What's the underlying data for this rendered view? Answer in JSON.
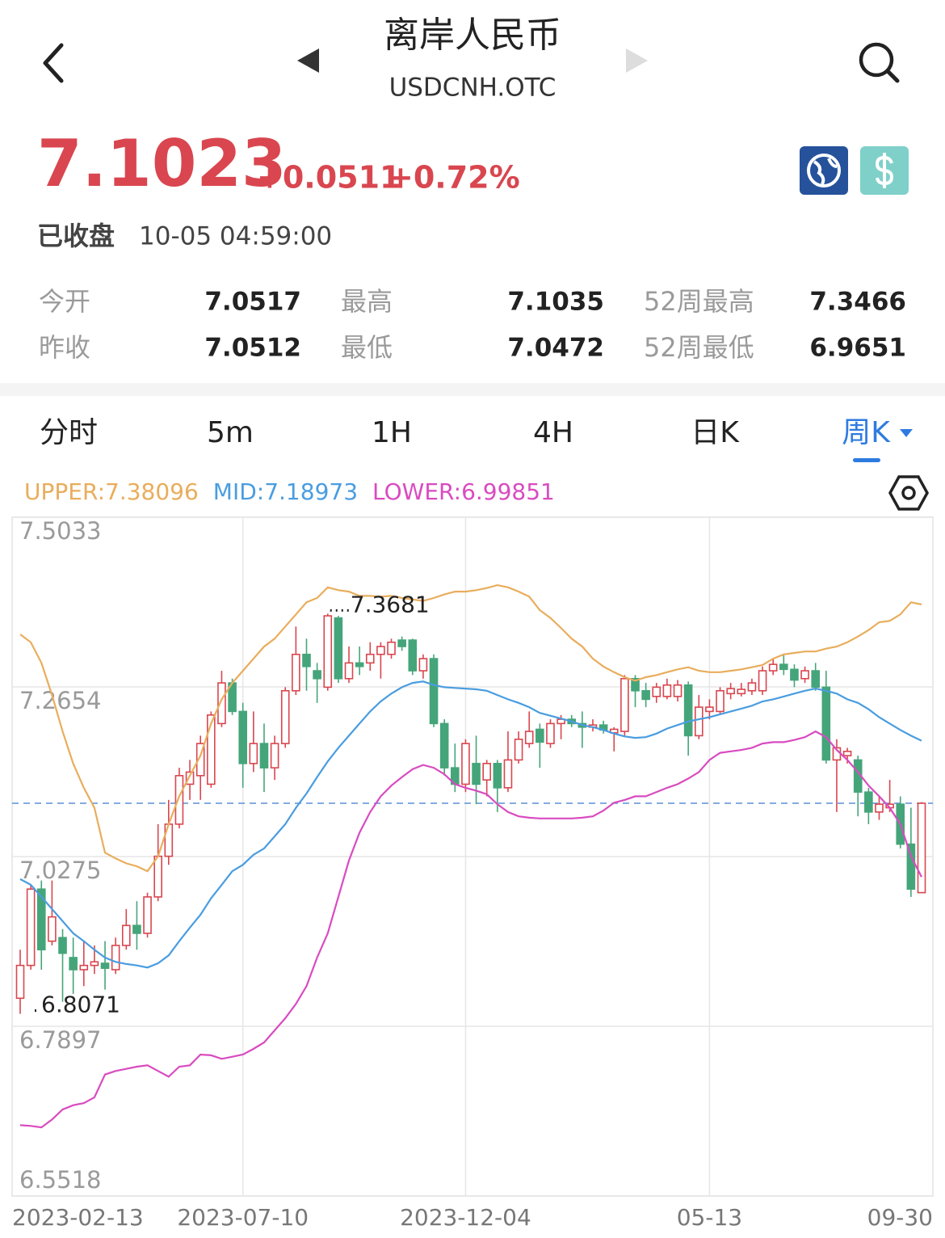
{
  "header": {
    "title": "离岸人民币",
    "code": "USDCNH.OTC",
    "price": "7.1023",
    "change": "+0.0511",
    "change_pct": "+0.72%",
    "status": "已收盘",
    "time": "10-05 04:59:00"
  },
  "stats": {
    "rows": [
      [
        "今开",
        "7.0517",
        "最高",
        "7.1035",
        "52周最高",
        "7.3466"
      ],
      [
        "昨收",
        "7.0512",
        "最低",
        "7.0472",
        "52周最低",
        "6.9651"
      ]
    ]
  },
  "tabs": {
    "items": [
      "分时",
      "5m",
      "1H",
      "4H",
      "日K",
      "周K"
    ],
    "active": "周K"
  },
  "chart_data": {
    "type": "candlestick",
    "categories": [
      "2023-02-13",
      null,
      null,
      null,
      null,
      null,
      null,
      null,
      null,
      null,
      null,
      null,
      null,
      null,
      null,
      null,
      null,
      null,
      null,
      null,
      null,
      "2023-07-10",
      null,
      null,
      null,
      null,
      null,
      null,
      null,
      null,
      null,
      null,
      null,
      null,
      null,
      null,
      null,
      null,
      null,
      null,
      null,
      null,
      "2023-12-04",
      null,
      null,
      null,
      null,
      null,
      null,
      null,
      null,
      null,
      null,
      null,
      null,
      null,
      null,
      null,
      null,
      null,
      null,
      null,
      null,
      null,
      null,
      "05-13",
      null,
      null,
      null,
      null,
      null,
      null,
      null,
      null,
      null,
      null,
      null,
      null,
      null,
      null,
      null,
      null,
      null,
      null,
      null,
      "09-30"
    ],
    "open": [
      6.829,
      6.875,
      6.982,
      6.909,
      6.914,
      6.886,
      6.869,
      6.875,
      6.878,
      6.869,
      6.903,
      6.931,
      6.92,
      6.971,
      7.028,
      7.073,
      7.129,
      7.141,
      7.129,
      7.214,
      7.271,
      7.231,
      7.158,
      7.186,
      7.152,
      7.186,
      7.26,
      7.311,
      7.288,
      7.265,
      7.362,
      7.277,
      7.299,
      7.299,
      7.311,
      7.311,
      7.331,
      7.331,
      7.288,
      7.305,
      7.214,
      7.152,
      7.129,
      7.158,
      7.135,
      7.158,
      7.124,
      7.163,
      7.186,
      7.206,
      7.186,
      7.214,
      7.22,
      7.214,
      7.209,
      7.212,
      7.201,
      7.203,
      7.277,
      7.26,
      7.252,
      7.252,
      7.252,
      7.268,
      7.197,
      7.231,
      7.231,
      7.256,
      7.256,
      7.26,
      7.26,
      7.288,
      7.297,
      7.29,
      7.277,
      7.288,
      7.265,
      7.163,
      7.169,
      7.163,
      7.118,
      7.09,
      7.096,
      7.101,
      7.045,
      6.977
    ],
    "high": [
      6.897,
      6.988,
      6.994,
      6.994,
      6.926,
      6.914,
      6.909,
      6.903,
      6.909,
      6.914,
      6.954,
      6.965,
      6.977,
      7.073,
      7.107,
      7.152,
      7.163,
      7.197,
      7.231,
      7.288,
      7.277,
      7.243,
      7.231,
      7.214,
      7.197,
      7.265,
      7.35,
      7.333,
      7.299,
      7.3681,
      7.365,
      7.322,
      7.322,
      7.328,
      7.328,
      7.333,
      7.336,
      7.333,
      7.311,
      7.311,
      7.22,
      7.186,
      7.192,
      7.197,
      7.163,
      7.163,
      7.203,
      7.203,
      7.231,
      7.214,
      7.22,
      7.226,
      7.226,
      7.231,
      7.22,
      7.218,
      7.209,
      7.282,
      7.282,
      7.271,
      7.271,
      7.277,
      7.275,
      7.273,
      7.254,
      7.248,
      7.265,
      7.271,
      7.271,
      7.277,
      7.294,
      7.305,
      7.311,
      7.297,
      7.294,
      7.299,
      7.288,
      7.192,
      7.18,
      7.169,
      7.124,
      7.112,
      7.135,
      7.112,
      7.096,
      7.104
    ],
    "low": [
      6.8071,
      6.869,
      6.869,
      6.903,
      6.824,
      6.835,
      6.846,
      6.863,
      6.841,
      6.863,
      6.897,
      6.897,
      6.914,
      6.965,
      7.016,
      7.067,
      7.107,
      7.107,
      7.124,
      7.209,
      7.226,
      7.124,
      7.146,
      7.118,
      7.135,
      7.18,
      7.254,
      7.26,
      7.243,
      7.26,
      7.271,
      7.271,
      7.282,
      7.288,
      7.277,
      7.305,
      7.316,
      7.282,
      7.277,
      7.209,
      7.141,
      7.118,
      7.118,
      7.101,
      7.112,
      7.09,
      7.118,
      7.158,
      7.18,
      7.152,
      7.18,
      7.192,
      7.209,
      7.18,
      7.203,
      7.2,
      7.175,
      7.197,
      7.237,
      7.237,
      7.243,
      7.248,
      7.245,
      7.169,
      7.192,
      7.22,
      7.226,
      7.248,
      7.252,
      7.254,
      7.254,
      7.282,
      7.282,
      7.265,
      7.271,
      7.26,
      7.158,
      7.09,
      7.158,
      7.084,
      7.073,
      7.079,
      7.09,
      7.039,
      6.971,
      6.977
    ],
    "close": [
      6.875,
      6.982,
      6.897,
      6.943,
      6.892,
      6.869,
      6.875,
      6.88,
      6.871,
      6.903,
      6.931,
      6.92,
      6.971,
      7.028,
      7.073,
      7.141,
      7.146,
      7.186,
      7.226,
      7.271,
      7.231,
      7.158,
      7.186,
      7.152,
      7.186,
      7.26,
      7.311,
      7.294,
      7.277,
      7.365,
      7.277,
      7.299,
      7.294,
      7.311,
      7.322,
      7.328,
      7.322,
      7.288,
      7.305,
      7.214,
      7.152,
      7.129,
      7.186,
      7.129,
      7.158,
      7.124,
      7.163,
      7.192,
      7.203,
      7.188,
      7.214,
      7.22,
      7.214,
      7.209,
      7.212,
      7.205,
      7.206,
      7.277,
      7.26,
      7.248,
      7.265,
      7.268,
      7.268,
      7.197,
      7.237,
      7.237,
      7.26,
      7.263,
      7.262,
      7.271,
      7.288,
      7.297,
      7.29,
      7.275,
      7.288,
      7.265,
      7.163,
      7.18,
      7.175,
      7.118,
      7.09,
      7.101,
      7.101,
      7.045,
      6.982,
      7.1023
    ],
    "up_color": "#d9464f",
    "down_color": "#45a57a",
    "lines": [
      {
        "name": "UPPER",
        "color": "#e9ad5c",
        "legend_value": 7.38096,
        "values": [
          7.339,
          7.328,
          7.299,
          7.254,
          7.203,
          7.158,
          7.124,
          7.096,
          7.033,
          7.025,
          7.018,
          7.014,
          7.007,
          7.028,
          7.073,
          7.112,
          7.141,
          7.169,
          7.214,
          7.248,
          7.271,
          7.288,
          7.305,
          7.322,
          7.333,
          7.35,
          7.367,
          7.384,
          7.39,
          7.405,
          7.401,
          7.399,
          7.393,
          7.393,
          7.392,
          7.393,
          7.39,
          7.388,
          7.386,
          7.39,
          7.395,
          7.399,
          7.399,
          7.401,
          7.404,
          7.408,
          7.405,
          7.399,
          7.392,
          7.373,
          7.362,
          7.348,
          7.333,
          7.322,
          7.305,
          7.294,
          7.286,
          7.279,
          7.274,
          7.279,
          7.282,
          7.286,
          7.29,
          7.293,
          7.288,
          7.286,
          7.286,
          7.288,
          7.29,
          7.293,
          7.296,
          7.305,
          7.311,
          7.313,
          7.315,
          7.315,
          7.319,
          7.322,
          7.328,
          7.336,
          7.345,
          7.356,
          7.358,
          7.367,
          7.384,
          7.381
        ]
      },
      {
        "name": "MID",
        "color": "#4a9de0",
        "legend_value": 7.18973,
        "values": [
          6.996,
          6.988,
          6.971,
          6.954,
          6.937,
          6.92,
          6.909,
          6.897,
          6.886,
          6.88,
          6.877,
          6.875,
          6.872,
          6.878,
          6.889,
          6.909,
          6.928,
          6.946,
          6.969,
          6.988,
          7.007,
          7.016,
          7.03,
          7.039,
          7.056,
          7.073,
          7.096,
          7.116,
          7.139,
          7.161,
          7.18,
          7.197,
          7.214,
          7.231,
          7.245,
          7.256,
          7.265,
          7.271,
          7.273,
          7.268,
          7.265,
          7.264,
          7.263,
          7.262,
          7.26,
          7.254,
          7.248,
          7.243,
          7.237,
          7.229,
          7.225,
          7.221,
          7.217,
          7.212,
          7.209,
          7.205,
          7.2,
          7.196,
          7.194,
          7.195,
          7.2,
          7.207,
          7.212,
          7.217,
          7.22,
          7.223,
          7.227,
          7.231,
          7.235,
          7.239,
          7.245,
          7.248,
          7.252,
          7.256,
          7.26,
          7.263,
          7.26,
          7.256,
          7.248,
          7.243,
          7.234,
          7.223,
          7.214,
          7.205,
          7.197,
          7.19
        ]
      },
      {
        "name": "LOWER",
        "color": "#d94bc0",
        "legend_value": 6.99851,
        "values": [
          6.651,
          6.65,
          6.648,
          6.659,
          6.673,
          6.679,
          6.682,
          6.69,
          6.722,
          6.727,
          6.73,
          6.733,
          6.735,
          6.727,
          6.719,
          6.733,
          6.735,
          6.75,
          6.749,
          6.744,
          6.747,
          6.75,
          6.758,
          6.767,
          6.784,
          6.801,
          6.821,
          6.846,
          6.886,
          6.92,
          6.971,
          7.022,
          7.061,
          7.09,
          7.112,
          7.127,
          7.139,
          7.15,
          7.156,
          7.152,
          7.143,
          7.129,
          7.124,
          7.12,
          7.115,
          7.101,
          7.09,
          7.084,
          7.082,
          7.081,
          7.081,
          7.081,
          7.081,
          7.082,
          7.084,
          7.092,
          7.103,
          7.107,
          7.112,
          7.112,
          7.118,
          7.124,
          7.129,
          7.137,
          7.146,
          7.163,
          7.173,
          7.175,
          7.177,
          7.18,
          7.186,
          7.188,
          7.188,
          7.191,
          7.195,
          7.203,
          7.195,
          7.177,
          7.163,
          7.146,
          7.127,
          7.112,
          7.096,
          7.073,
          7.028,
          6.999
        ]
      }
    ],
    "legend_separator": ":",
    "price_line": 7.1023,
    "price_line_color": "#5b8fd6",
    "max_value": 7.3681,
    "min_value": 6.8071,
    "ylim": [
      6.5518,
      7.5033
    ],
    "yticks": [
      7.5033,
      7.2654,
      7.0275,
      6.7897,
      6.5518
    ],
    "grid": true
  }
}
